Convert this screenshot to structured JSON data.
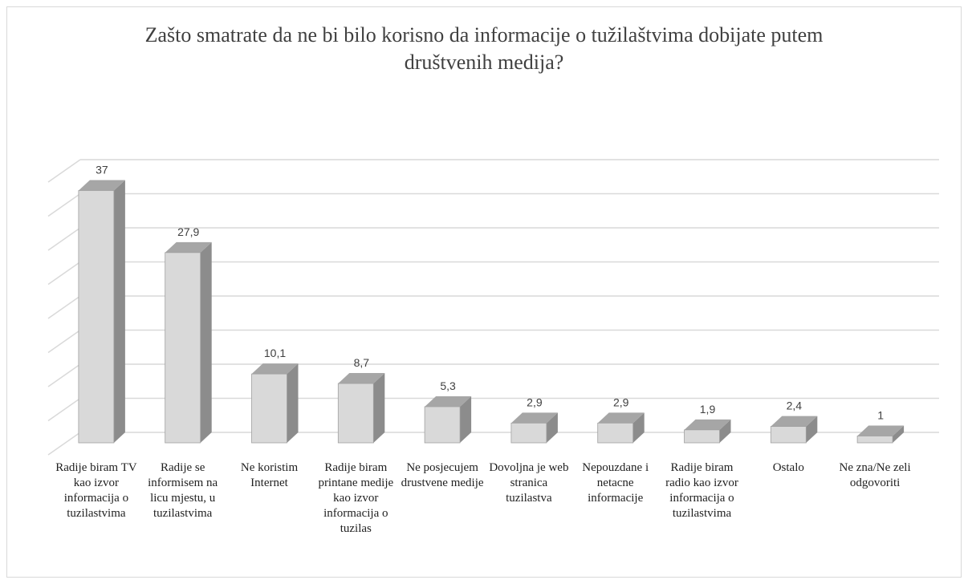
{
  "chart_data": {
    "type": "bar3d",
    "title": "Zašto smatrate da ne bi bilo korisno da informacije o tužilaštvima dobijate putem društvenih medija?",
    "categories": [
      "Radije biram TV kao izvor informacija o tuzilastvima",
      "Radije se informisem na licu mjestu, u tuzilastvima",
      "Ne koristim Internet",
      "Radije biram printane medije kao izvor informacija o tuzilas",
      "Ne posjecujem drustvene medije",
      "Dovoljna je web stranica tuzilastva",
      "Nepouzdane i netacne informacije",
      "Radije biram radio kao izvor informacija o tuzilastvima",
      "Ostalo",
      "Ne zna/Ne zeli odgovoriti"
    ],
    "values": [
      37,
      27.9,
      10.1,
      8.7,
      5.3,
      2.9,
      2.9,
      1.9,
      2.4,
      1
    ],
    "value_labels": [
      "37",
      "27,9",
      "10,1",
      "8,7",
      "5,3",
      "2,9",
      "2,9",
      "1,9",
      "2,4",
      "1"
    ],
    "color": "#d9d9d9",
    "side_color": "#8c8c8c",
    "top_color": "#a6a6a6",
    "ylim": [
      0,
      40
    ],
    "yticks": [
      0,
      5,
      10,
      15,
      20,
      25,
      30,
      35,
      40
    ],
    "grid": true
  }
}
